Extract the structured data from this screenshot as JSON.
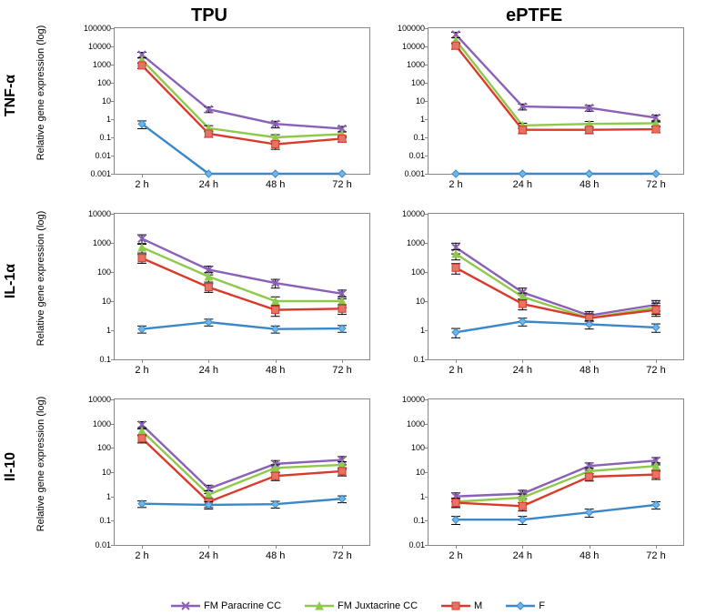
{
  "columns": [
    "TPU",
    "ePTFE"
  ],
  "rows": [
    "TNF-α",
    "IL-1α",
    "Il-10"
  ],
  "y_axis_label": "Relative gene expression (log)",
  "x_categories": [
    "2 h",
    "24 h",
    "48 h",
    "72 h"
  ],
  "series": [
    {
      "key": "fmP",
      "label": "FM Paracrine CC",
      "color": "#8a60b8",
      "marker": "x",
      "marker_fill": "#8a60b8"
    },
    {
      "key": "fmJ",
      "label": "FM Juxtacrine CC",
      "color": "#8fc94a",
      "marker": "triangle",
      "marker_fill": "#8fc94a"
    },
    {
      "key": "M",
      "label": "M",
      "color": "#d93a2b",
      "marker": "square",
      "marker_fill": "#e57366"
    },
    {
      "key": "F",
      "label": "F",
      "color": "#3a88c9",
      "marker": "diamond",
      "marker_fill": "#6fb6e8"
    }
  ],
  "panels": [
    {
      "id": "TNFa_TPU",
      "ylim": [
        0.001,
        100000
      ],
      "yticks": [
        0.001,
        0.01,
        0.1,
        1,
        10,
        100,
        1000,
        10000,
        100000
      ],
      "ytick_labels": [
        "0.001",
        "0.01",
        "0.1",
        "1",
        "10",
        "100",
        "1000",
        "10000",
        "100000"
      ],
      "data": {
        "fmP": [
          3500,
          3.5,
          0.55,
          0.3
        ],
        "fmJ": [
          1800,
          0.32,
          0.1,
          0.15
        ],
        "M": [
          900,
          0.16,
          0.042,
          0.085
        ],
        "F": [
          0.55,
          0.001,
          0.001,
          0.001
        ]
      },
      "err": {
        "fmP": [
          1200,
          1.2,
          0.22,
          0.1
        ],
        "fmJ": [
          600,
          0.12,
          0.04,
          0.05
        ],
        "M": [
          300,
          0.06,
          0.02,
          0.03
        ],
        "F": [
          0.25,
          0,
          0,
          0
        ]
      }
    },
    {
      "id": "TNFa_ePTFE",
      "ylim": [
        0.001,
        100000
      ],
      "yticks": [
        0.001,
        0.01,
        0.1,
        1,
        10,
        100,
        1000,
        10000,
        100000
      ],
      "ytick_labels": [
        "0.001",
        "0.01",
        "0.1",
        "1",
        "10",
        "100",
        "1000",
        "10000",
        "100000"
      ],
      "data": {
        "fmP": [
          45000,
          5.0,
          4.2,
          1.2
        ],
        "fmJ": [
          22000,
          0.45,
          0.55,
          0.6
        ],
        "M": [
          11000,
          0.26,
          0.26,
          0.28
        ],
        "F": [
          0.001,
          0.001,
          0.001,
          0.001
        ]
      },
      "err": {
        "fmP": [
          15000,
          1.8,
          1.5,
          0.5
        ],
        "fmJ": [
          8000,
          0.15,
          0.2,
          0.2
        ],
        "M": [
          4000,
          0.1,
          0.1,
          0.1
        ],
        "F": [
          0,
          0,
          0,
          0
        ]
      }
    },
    {
      "id": "IL1a_TPU",
      "ylim": [
        0.1,
        10000
      ],
      "yticks": [
        0.1,
        1,
        10,
        100,
        1000,
        10000
      ],
      "ytick_labels": [
        "0.1",
        "1",
        "10",
        "100",
        "1000",
        "10000"
      ],
      "data": {
        "fmP": [
          1400,
          120,
          42,
          18
        ],
        "fmJ": [
          700,
          70,
          10,
          10
        ],
        "M": [
          300,
          30,
          5,
          5.5
        ],
        "F": [
          1.1,
          1.9,
          1.1,
          1.15
        ]
      },
      "err": {
        "fmP": [
          500,
          40,
          14,
          6
        ],
        "fmJ": [
          250,
          25,
          4,
          4
        ],
        "M": [
          100,
          10,
          2,
          2
        ],
        "F": [
          0.3,
          0.5,
          0.3,
          0.3
        ]
      }
    },
    {
      "id": "IL1a_ePTFE",
      "ylim": [
        0.1,
        10000
      ],
      "yticks": [
        0.1,
        1,
        10,
        100,
        1000,
        10000
      ],
      "ytick_labels": [
        "0.1",
        "1",
        "10",
        "100",
        "1000",
        "10000"
      ],
      "data": {
        "fmP": [
          700,
          20,
          3.2,
          7.5
        ],
        "fmJ": [
          420,
          14,
          2.6,
          6.0
        ],
        "M": [
          140,
          8,
          2.6,
          5.0
        ],
        "F": [
          0.85,
          2.0,
          1.6,
          1.25
        ]
      },
      "err": {
        "fmP": [
          280,
          8,
          1.2,
          3
        ],
        "fmJ": [
          160,
          5,
          1,
          2.5
        ],
        "M": [
          55,
          3,
          1,
          2
        ],
        "F": [
          0.3,
          0.6,
          0.5,
          0.4
        ]
      }
    },
    {
      "id": "IL10_TPU",
      "ylim": [
        0.01,
        10000
      ],
      "yticks": [
        0.01,
        0.1,
        1,
        10,
        100,
        1000,
        10000
      ],
      "ytick_labels": [
        "0.01",
        "0.1",
        "1",
        "10",
        "100",
        "1000",
        "10000"
      ],
      "data": {
        "fmP": [
          900,
          2.1,
          22,
          32
        ],
        "fmJ": [
          500,
          1.2,
          15,
          20
        ],
        "M": [
          250,
          0.6,
          7,
          11
        ],
        "F": [
          0.5,
          0.45,
          0.48,
          0.8
        ]
      },
      "err": {
        "fmP": [
          300,
          0.8,
          8,
          12
        ],
        "fmJ": [
          180,
          0.5,
          5,
          7
        ],
        "M": [
          90,
          0.25,
          2.5,
          4
        ],
        "F": [
          0.15,
          0.15,
          0.15,
          0.25
        ]
      }
    },
    {
      "id": "IL10_ePTFE",
      "ylim": [
        0.01,
        10000
      ],
      "yticks": [
        0.01,
        0.1,
        1,
        10,
        100,
        1000,
        10000
      ],
      "ytick_labels": [
        "0.01",
        "0.1",
        "1",
        "10",
        "100",
        "1000",
        "10000"
      ],
      "data": {
        "fmP": [
          1.0,
          1.3,
          18,
          30
        ],
        "fmJ": [
          0.6,
          0.9,
          11,
          18
        ],
        "M": [
          0.55,
          0.4,
          6.5,
          8
        ],
        "F": [
          0.11,
          0.11,
          0.22,
          0.45
        ]
      },
      "err": {
        "fmP": [
          0.4,
          0.5,
          6,
          10
        ],
        "fmJ": [
          0.25,
          0.35,
          4,
          6
        ],
        "M": [
          0.2,
          0.15,
          2.2,
          3
        ],
        "F": [
          0.04,
          0.04,
          0.08,
          0.15
        ]
      }
    }
  ],
  "legend_order": [
    "fmP",
    "fmJ",
    "M",
    "F"
  ],
  "line_width": 2.4,
  "marker_size": 8,
  "error_cap": 5,
  "axis_color": "#888888",
  "text_color": "#000000"
}
